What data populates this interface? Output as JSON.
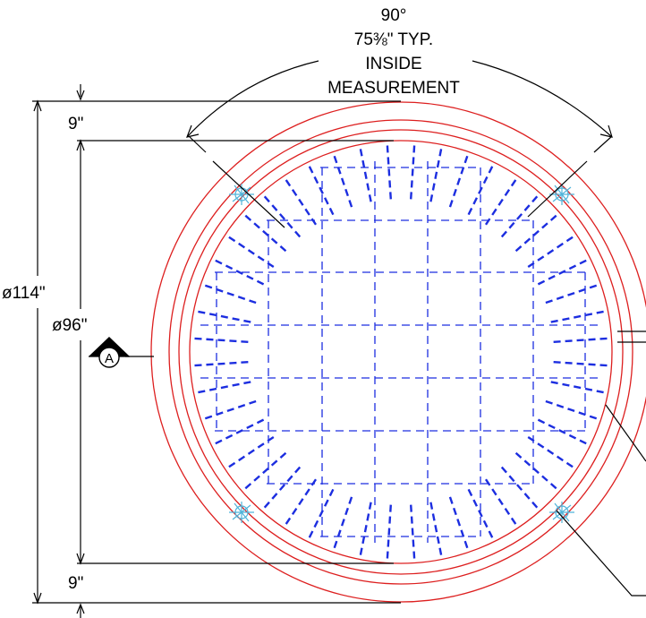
{
  "drawing": {
    "angle_label": "90°",
    "arc_length_label": "75⅜\" TYP.",
    "inside_label": "INSIDE",
    "measurement_label": "MEASUREMENT",
    "outer_diameter_label": "ø114\"",
    "inner_diameter_label": "ø96\"",
    "offset_top_label": "9\"",
    "offset_bottom_label": "9\"",
    "section_marker_label": "A"
  },
  "colors": {
    "ring": "#dd1f1f",
    "rebar": "#1c2ee0",
    "dimension": "#000000",
    "fitting": "#4fb3d9"
  },
  "icons": {
    "section_marker": "section-cut-arrow-icon",
    "lifting_lug": "lifting-lug-icon"
  }
}
